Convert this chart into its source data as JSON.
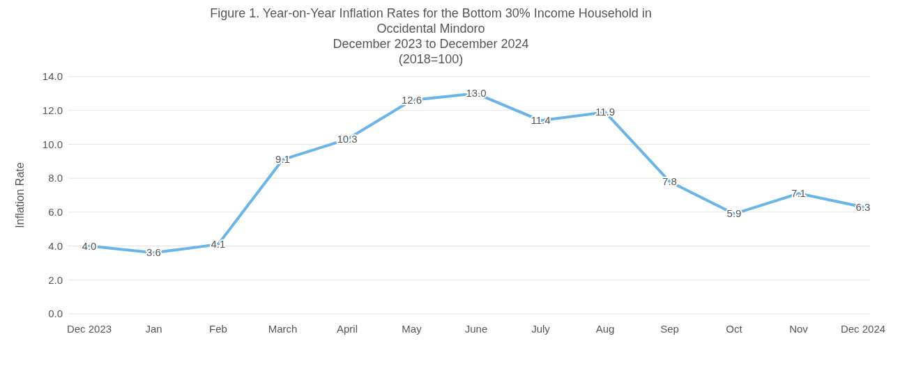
{
  "chart_data": {
    "type": "line",
    "title": "Figure 1. Year-on-Year Inflation Rates for the Bottom 30% Income Household in Occidental Mindoro",
    "subtitle": "December 2023 to December 2024",
    "annotations": [
      "(2018=100)"
    ],
    "ylabel": "Inflation Rate",
    "categories": [
      "Dec 2023",
      "Jan",
      "Feb",
      "March",
      "April",
      "May",
      "June",
      "July",
      "Aug",
      "Sep",
      "Oct",
      "Nov",
      "Dec 2024"
    ],
    "series": [
      {
        "color": "#6ab4e6",
        "values": [
          4.0,
          3.6,
          4.1,
          9.1,
          10.3,
          12.6,
          13.0,
          11.4,
          11.9,
          7.8,
          5.9,
          7.1,
          6.3
        ],
        "value_labels": [
          "4.0",
          "3.6",
          "4.1",
          "9.1",
          "10.3",
          "12.6",
          "13.0",
          "11.4",
          "11.9",
          "7.8",
          "5.9",
          "7.1",
          "6.3"
        ]
      }
    ],
    "ylim": [
      0,
      14
    ],
    "yticks": [
      {
        "value": 0,
        "label": "0.0"
      },
      {
        "value": 2,
        "label": "2.0"
      },
      {
        "value": 4,
        "label": "4.0"
      },
      {
        "value": 6,
        "label": "6.0"
      },
      {
        "value": 8,
        "label": "8.0"
      },
      {
        "value": 10,
        "label": "10.0"
      },
      {
        "value": 12,
        "label": "12.0"
      },
      {
        "value": 14,
        "label": "14.0"
      }
    ],
    "grid": "y",
    "legend": false,
    "marker": "none",
    "line_style": "solid"
  }
}
